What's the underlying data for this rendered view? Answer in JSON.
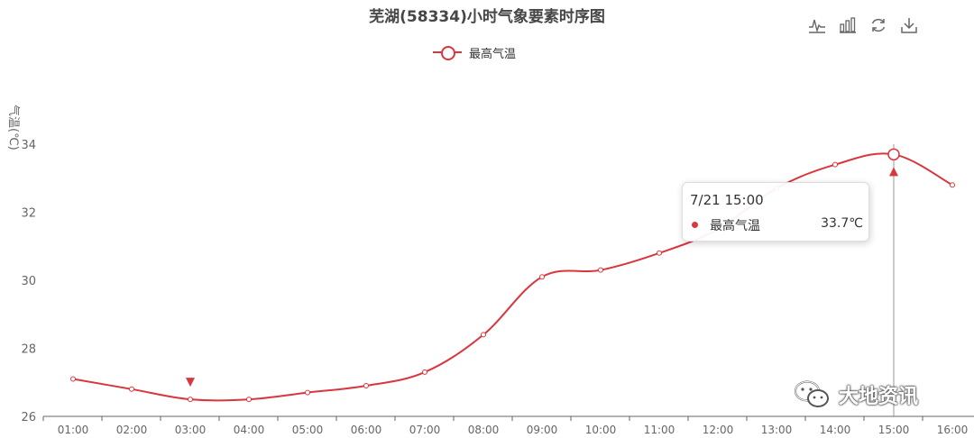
{
  "chart_data": {
    "type": "line",
    "title": "芜湖(58334)小时气象要素时序图",
    "ylabel": "气温(℃)",
    "ylim": [
      26,
      35
    ],
    "yticks": [
      26,
      28,
      30,
      32,
      34
    ],
    "categories": [
      "01:00",
      "02:00",
      "03:00",
      "04:00",
      "05:00",
      "06:00",
      "07:00",
      "08:00",
      "09:00",
      "10:00",
      "11:00",
      "12:00",
      "13:00",
      "14:00",
      "15:00",
      "16:00"
    ],
    "series": [
      {
        "name": "最高气温",
        "color": "#d9363e",
        "values": [
          27.1,
          26.8,
          26.5,
          26.5,
          26.7,
          26.9,
          27.3,
          28.4,
          30.1,
          30.3,
          30.8,
          31.5,
          32.7,
          33.4,
          33.7,
          32.8
        ]
      }
    ],
    "mark_points": [
      {
        "type": "min",
        "category": "03:00",
        "value": 26.5
      },
      {
        "type": "max",
        "category": "15:00",
        "value": 33.7
      }
    ],
    "legend": "top-center",
    "grid": false
  },
  "tooltip": {
    "title": "7/21 15:00",
    "series_name": "最高气温",
    "value": "33.7℃",
    "category": "15:00"
  },
  "toolbox": [
    {
      "name": "line-chart-icon"
    },
    {
      "name": "bar-chart-icon"
    },
    {
      "name": "restore-icon"
    },
    {
      "name": "download-icon"
    }
  ],
  "watermark": {
    "text": "大地资讯",
    "icon": "wechat-icon"
  }
}
